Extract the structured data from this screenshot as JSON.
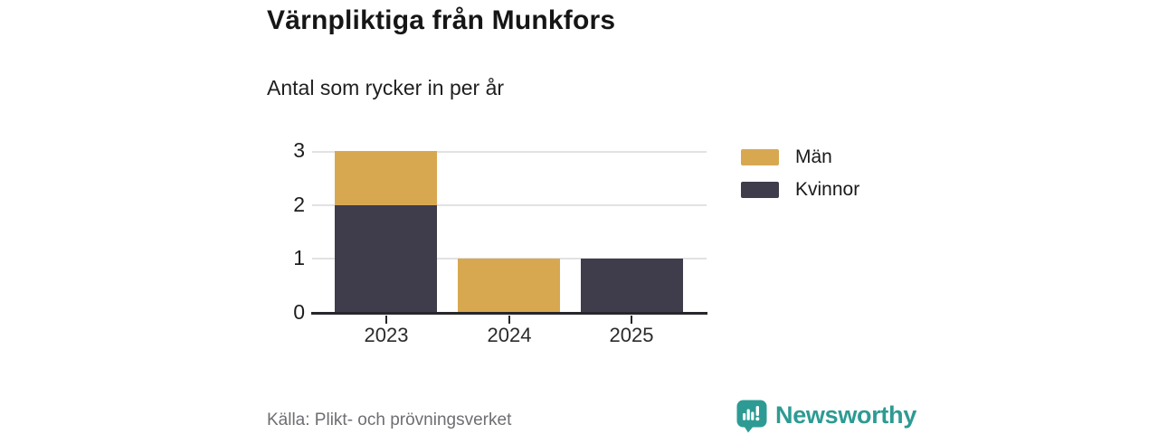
{
  "header": {
    "title": "Värnpliktiga från Munkfors",
    "subtitle": "Antal som rycker in per år"
  },
  "chart_data": {
    "type": "bar",
    "stacked": true,
    "categories": [
      "2023",
      "2024",
      "2025"
    ],
    "series": [
      {
        "name": "Män",
        "color": "#d8a851",
        "values": [
          1,
          1,
          0
        ]
      },
      {
        "name": "Kvinnor",
        "color": "#3f3d4c",
        "values": [
          2,
          0,
          1
        ]
      }
    ],
    "stack_order_bottom_to_top": [
      "Kvinnor",
      "Män"
    ],
    "title": "Värnpliktiga från Munkfors",
    "subtitle": "Antal som rycker in per år",
    "xlabel": "",
    "ylabel": "",
    "ylim": [
      0,
      3
    ],
    "yticks": [
      0,
      1,
      2,
      3
    ],
    "grid": true,
    "legend_position": "right"
  },
  "legend": {
    "items": [
      {
        "label": "Män",
        "color": "#d8a851"
      },
      {
        "label": "Kvinnor",
        "color": "#3f3d4c"
      }
    ]
  },
  "footer": {
    "source": "Källa: Plikt- och prövningsverket",
    "brand": "Newsworthy"
  },
  "colors": {
    "men": "#d8a851",
    "women": "#3f3d4c",
    "brand_teal": "#2d9b93",
    "gridline": "#e2e2e2",
    "axis": "#26262b"
  }
}
